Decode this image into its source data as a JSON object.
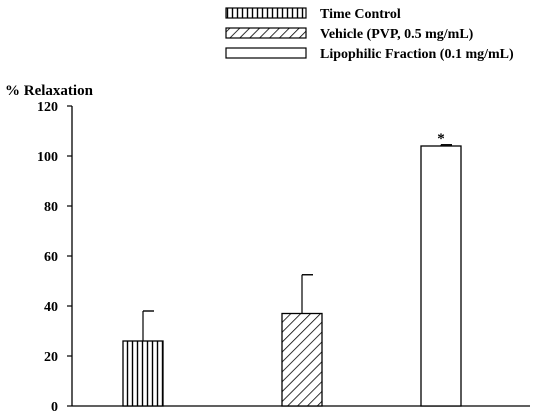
{
  "chart_data": {
    "type": "bar",
    "ylabel": "% Relaxation",
    "ylim": [
      0,
      120
    ],
    "yticks": [
      0,
      20,
      40,
      60,
      80,
      100,
      120
    ],
    "series": [
      {
        "name": "Time Control",
        "value": 26,
        "error": 12,
        "pattern": "vertical-lines"
      },
      {
        "name": "Vehicle (PVP, 0.5 mg/mL)",
        "value": 37,
        "error": 15.5,
        "pattern": "diagonal-lines"
      },
      {
        "name": "Lipophilic Fraction (0.1 mg/mL)",
        "value": 104,
        "error": 0.5,
        "pattern": "none",
        "annotation": "*"
      }
    ],
    "legend_position": "top-right",
    "grid": false
  }
}
